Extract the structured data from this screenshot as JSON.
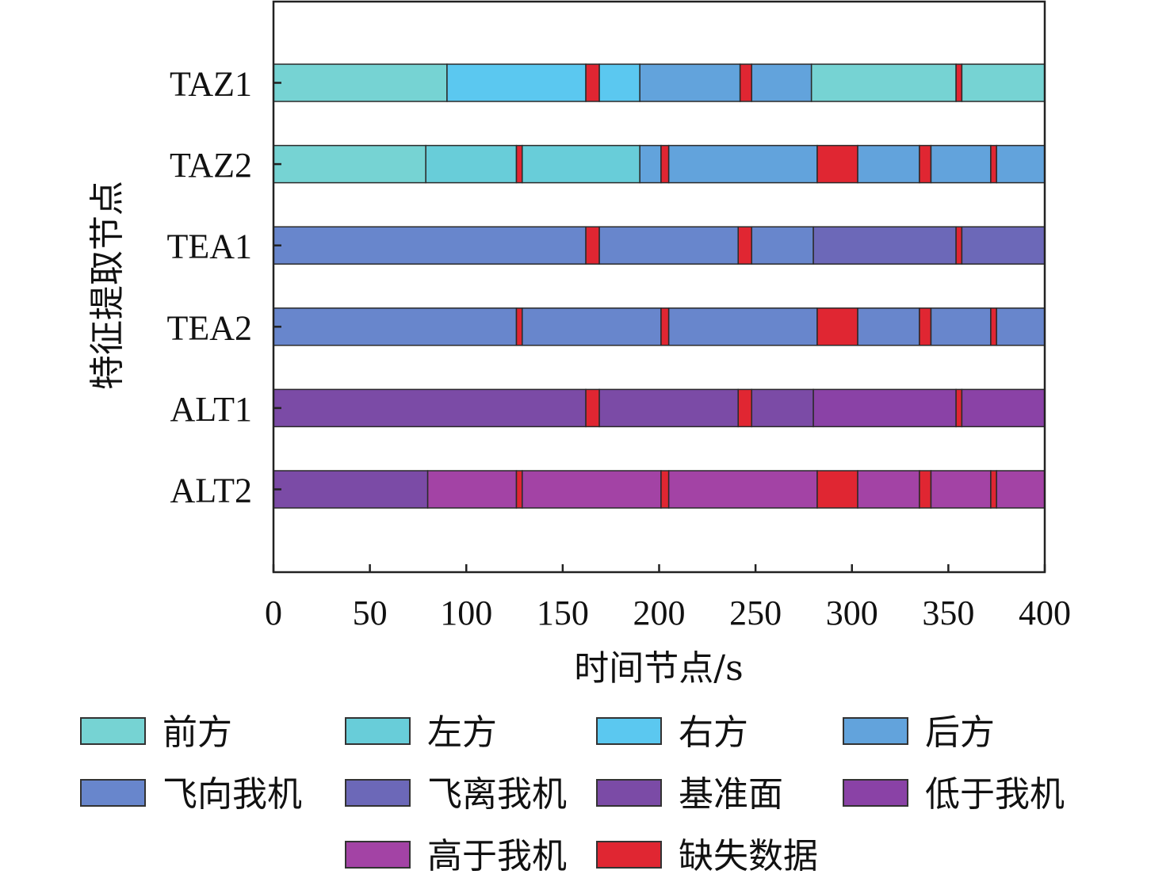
{
  "chart_data": {
    "type": "bar",
    "subtype": "stacked-horizontal-timeline",
    "xlabel": "时间节点/s",
    "ylabel": "特征提取节点",
    "xlim": [
      0,
      400
    ],
    "xticks": [
      0,
      50,
      100,
      150,
      200,
      250,
      300,
      350,
      400
    ],
    "grid": false,
    "legend_position": "bottom",
    "legend": [
      {
        "key": "front",
        "label": "前方",
        "color": "#76d3d3"
      },
      {
        "key": "left",
        "label": "左方",
        "color": "#68cdd9"
      },
      {
        "key": "right",
        "label": "右方",
        "color": "#5bc8f0"
      },
      {
        "key": "rear",
        "label": "后方",
        "color": "#62a3dc"
      },
      {
        "key": "toward",
        "label": "飞向我机",
        "color": "#6886cc"
      },
      {
        "key": "away",
        "label": "飞离我机",
        "color": "#6c68b8"
      },
      {
        "key": "level",
        "label": "基准面",
        "color": "#7b4ba6"
      },
      {
        "key": "below",
        "label": "低于我机",
        "color": "#8a42a6"
      },
      {
        "key": "above",
        "label": "高于我机",
        "color": "#a343a5"
      },
      {
        "key": "missing",
        "label": "缺失数据",
        "color": "#e02632"
      }
    ],
    "rows": [
      {
        "label": "TAZ1",
        "segments": [
          [
            0,
            90,
            "front"
          ],
          [
            90,
            162,
            "right"
          ],
          [
            162,
            169,
            "missing"
          ],
          [
            169,
            190,
            "right"
          ],
          [
            190,
            242,
            "rear"
          ],
          [
            242,
            248,
            "missing"
          ],
          [
            248,
            279,
            "rear"
          ],
          [
            279,
            354,
            "front"
          ],
          [
            354,
            357,
            "missing"
          ],
          [
            357,
            400,
            "front"
          ]
        ]
      },
      {
        "label": "TAZ2",
        "segments": [
          [
            0,
            79,
            "front"
          ],
          [
            79,
            126,
            "left"
          ],
          [
            126,
            129,
            "missing"
          ],
          [
            129,
            190,
            "left"
          ],
          [
            190,
            201,
            "rear"
          ],
          [
            201,
            205,
            "missing"
          ],
          [
            205,
            282,
            "rear"
          ],
          [
            282,
            303,
            "missing"
          ],
          [
            303,
            335,
            "rear"
          ],
          [
            335,
            341,
            "missing"
          ],
          [
            341,
            372,
            "rear"
          ],
          [
            372,
            375,
            "missing"
          ],
          [
            375,
            400,
            "rear"
          ]
        ]
      },
      {
        "label": "TEA1",
        "segments": [
          [
            0,
            162,
            "toward"
          ],
          [
            162,
            169,
            "missing"
          ],
          [
            169,
            241,
            "toward"
          ],
          [
            241,
            248,
            "missing"
          ],
          [
            248,
            280,
            "toward"
          ],
          [
            280,
            354,
            "away"
          ],
          [
            354,
            357,
            "missing"
          ],
          [
            357,
            400,
            "away"
          ]
        ]
      },
      {
        "label": "TEA2",
        "segments": [
          [
            0,
            126,
            "toward"
          ],
          [
            126,
            129,
            "missing"
          ],
          [
            129,
            201,
            "toward"
          ],
          [
            201,
            205,
            "missing"
          ],
          [
            205,
            282,
            "toward"
          ],
          [
            282,
            303,
            "missing"
          ],
          [
            303,
            335,
            "toward"
          ],
          [
            335,
            341,
            "missing"
          ],
          [
            341,
            372,
            "toward"
          ],
          [
            372,
            375,
            "missing"
          ],
          [
            375,
            400,
            "toward"
          ]
        ]
      },
      {
        "label": "ALT1",
        "segments": [
          [
            0,
            162,
            "level"
          ],
          [
            162,
            169,
            "missing"
          ],
          [
            169,
            241,
            "level"
          ],
          [
            241,
            248,
            "missing"
          ],
          [
            248,
            280,
            "level"
          ],
          [
            280,
            354,
            "below"
          ],
          [
            354,
            357,
            "missing"
          ],
          [
            357,
            400,
            "below"
          ]
        ]
      },
      {
        "label": "ALT2",
        "segments": [
          [
            0,
            80,
            "level"
          ],
          [
            80,
            126,
            "above"
          ],
          [
            126,
            129,
            "missing"
          ],
          [
            129,
            201,
            "above"
          ],
          [
            201,
            205,
            "missing"
          ],
          [
            205,
            282,
            "above"
          ],
          [
            282,
            303,
            "missing"
          ],
          [
            303,
            335,
            "above"
          ],
          [
            335,
            341,
            "missing"
          ],
          [
            341,
            372,
            "above"
          ],
          [
            372,
            375,
            "missing"
          ],
          [
            375,
            400,
            "above"
          ]
        ]
      }
    ]
  }
}
